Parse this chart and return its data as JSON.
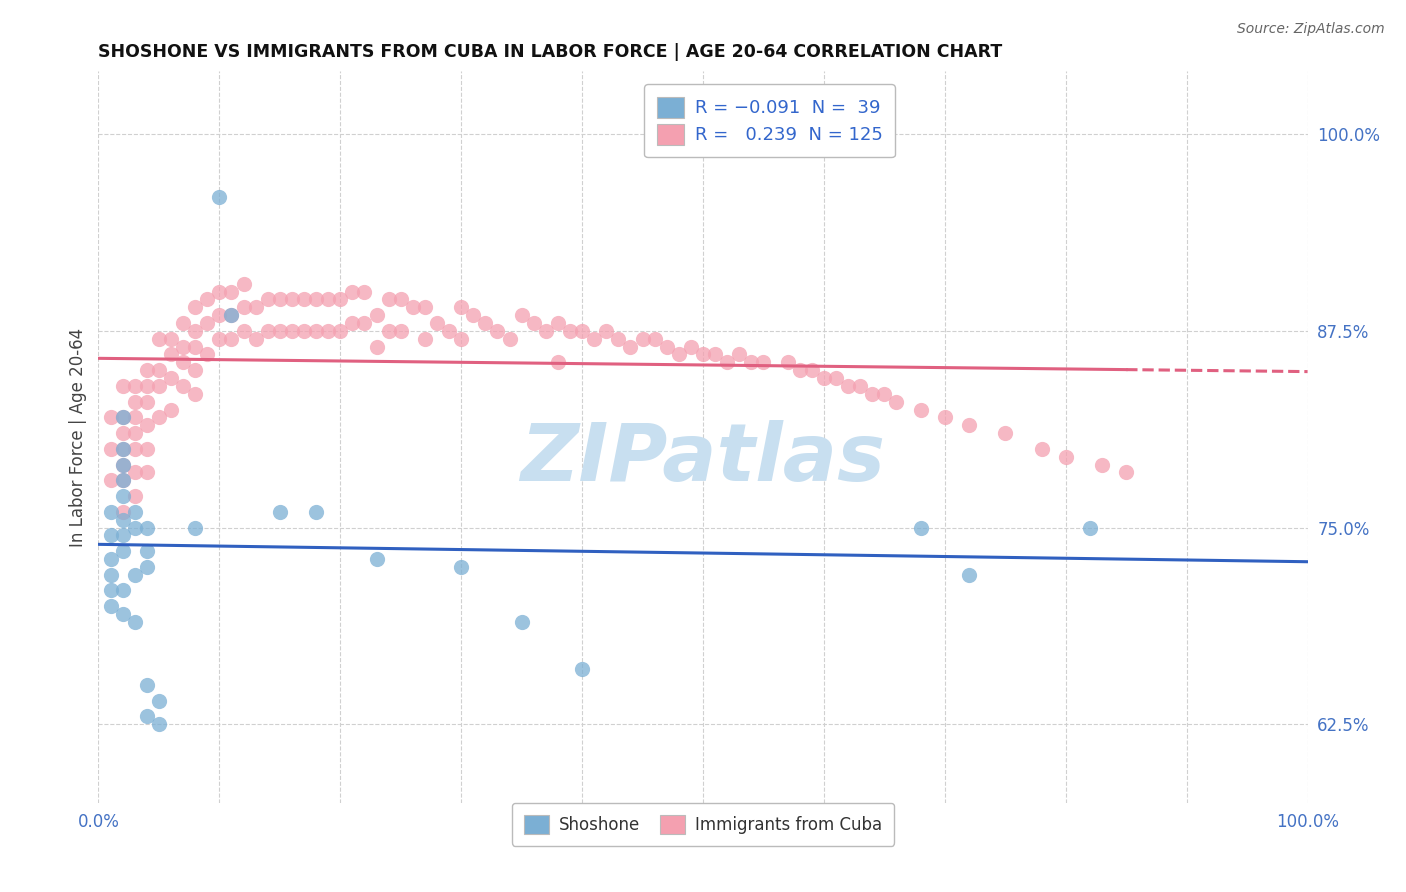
{
  "title": "SHOSHONE VS IMMIGRANTS FROM CUBA IN LABOR FORCE | AGE 20-64 CORRELATION CHART",
  "source": "Source: ZipAtlas.com",
  "ylabel": "In Labor Force | Age 20-64",
  "xlim": [
    0.0,
    1.0
  ],
  "ylim": [
    0.575,
    1.04
  ],
  "y_ticks": [
    0.625,
    0.75,
    0.875,
    1.0
  ],
  "y_tick_labels": [
    "62.5%",
    "75.0%",
    "87.5%",
    "100.0%"
  ],
  "shoshone_color": "#7bafd4",
  "cuba_color": "#f4a0b0",
  "shoshone_line_color": "#3060c0",
  "cuba_line_color": "#e06080",
  "background_color": "#ffffff",
  "grid_color": "#d0d0d0",
  "watermark_text": "ZIPatlas",
  "watermark_color": "#c8dff0",
  "shoshone_x": [
    0.01,
    0.01,
    0.01,
    0.01,
    0.01,
    0.01,
    0.02,
    0.02,
    0.02,
    0.02,
    0.02,
    0.02,
    0.02,
    0.02,
    0.02,
    0.02,
    0.03,
    0.03,
    0.03,
    0.03,
    0.04,
    0.04,
    0.04,
    0.04,
    0.04,
    0.05,
    0.05,
    0.08,
    0.1,
    0.11,
    0.15,
    0.18,
    0.23,
    0.3,
    0.35,
    0.4,
    0.68,
    0.72,
    0.82
  ],
  "shoshone_y": [
    0.76,
    0.745,
    0.73,
    0.72,
    0.71,
    0.7,
    0.82,
    0.8,
    0.79,
    0.78,
    0.77,
    0.755,
    0.745,
    0.735,
    0.71,
    0.695,
    0.76,
    0.75,
    0.72,
    0.69,
    0.75,
    0.735,
    0.725,
    0.65,
    0.63,
    0.64,
    0.625,
    0.75,
    0.96,
    0.885,
    0.76,
    0.76,
    0.73,
    0.725,
    0.69,
    0.66,
    0.75,
    0.72,
    0.75
  ],
  "cuba_x": [
    0.01,
    0.01,
    0.01,
    0.02,
    0.02,
    0.02,
    0.02,
    0.02,
    0.02,
    0.02,
    0.03,
    0.03,
    0.03,
    0.03,
    0.03,
    0.03,
    0.03,
    0.04,
    0.04,
    0.04,
    0.04,
    0.04,
    0.04,
    0.05,
    0.05,
    0.05,
    0.05,
    0.06,
    0.06,
    0.06,
    0.06,
    0.07,
    0.07,
    0.07,
    0.07,
    0.08,
    0.08,
    0.08,
    0.08,
    0.08,
    0.09,
    0.09,
    0.09,
    0.1,
    0.1,
    0.1,
    0.11,
    0.11,
    0.11,
    0.12,
    0.12,
    0.12,
    0.13,
    0.13,
    0.14,
    0.14,
    0.15,
    0.15,
    0.16,
    0.16,
    0.17,
    0.17,
    0.18,
    0.18,
    0.19,
    0.19,
    0.2,
    0.2,
    0.21,
    0.21,
    0.22,
    0.22,
    0.23,
    0.23,
    0.24,
    0.24,
    0.25,
    0.25,
    0.26,
    0.27,
    0.27,
    0.28,
    0.29,
    0.3,
    0.3,
    0.31,
    0.32,
    0.33,
    0.34,
    0.35,
    0.36,
    0.37,
    0.38,
    0.38,
    0.39,
    0.4,
    0.41,
    0.42,
    0.43,
    0.44,
    0.45,
    0.46,
    0.47,
    0.48,
    0.49,
    0.5,
    0.51,
    0.52,
    0.53,
    0.54,
    0.55,
    0.57,
    0.58,
    0.59,
    0.6,
    0.61,
    0.62,
    0.63,
    0.64,
    0.65,
    0.66,
    0.68,
    0.7,
    0.72,
    0.75,
    0.78,
    0.8,
    0.83,
    0.85
  ],
  "cuba_y": [
    0.82,
    0.8,
    0.78,
    0.84,
    0.82,
    0.81,
    0.8,
    0.79,
    0.78,
    0.76,
    0.84,
    0.83,
    0.82,
    0.81,
    0.8,
    0.785,
    0.77,
    0.85,
    0.84,
    0.83,
    0.815,
    0.8,
    0.785,
    0.87,
    0.85,
    0.84,
    0.82,
    0.87,
    0.86,
    0.845,
    0.825,
    0.88,
    0.865,
    0.855,
    0.84,
    0.89,
    0.875,
    0.865,
    0.85,
    0.835,
    0.895,
    0.88,
    0.86,
    0.9,
    0.885,
    0.87,
    0.9,
    0.885,
    0.87,
    0.905,
    0.89,
    0.875,
    0.89,
    0.87,
    0.895,
    0.875,
    0.895,
    0.875,
    0.895,
    0.875,
    0.895,
    0.875,
    0.895,
    0.875,
    0.895,
    0.875,
    0.895,
    0.875,
    0.9,
    0.88,
    0.9,
    0.88,
    0.885,
    0.865,
    0.895,
    0.875,
    0.895,
    0.875,
    0.89,
    0.89,
    0.87,
    0.88,
    0.875,
    0.89,
    0.87,
    0.885,
    0.88,
    0.875,
    0.87,
    0.885,
    0.88,
    0.875,
    0.88,
    0.855,
    0.875,
    0.875,
    0.87,
    0.875,
    0.87,
    0.865,
    0.87,
    0.87,
    0.865,
    0.86,
    0.865,
    0.86,
    0.86,
    0.855,
    0.86,
    0.855,
    0.855,
    0.855,
    0.85,
    0.85,
    0.845,
    0.845,
    0.84,
    0.84,
    0.835,
    0.835,
    0.83,
    0.825,
    0.82,
    0.815,
    0.81,
    0.8,
    0.795,
    0.79,
    0.785
  ]
}
